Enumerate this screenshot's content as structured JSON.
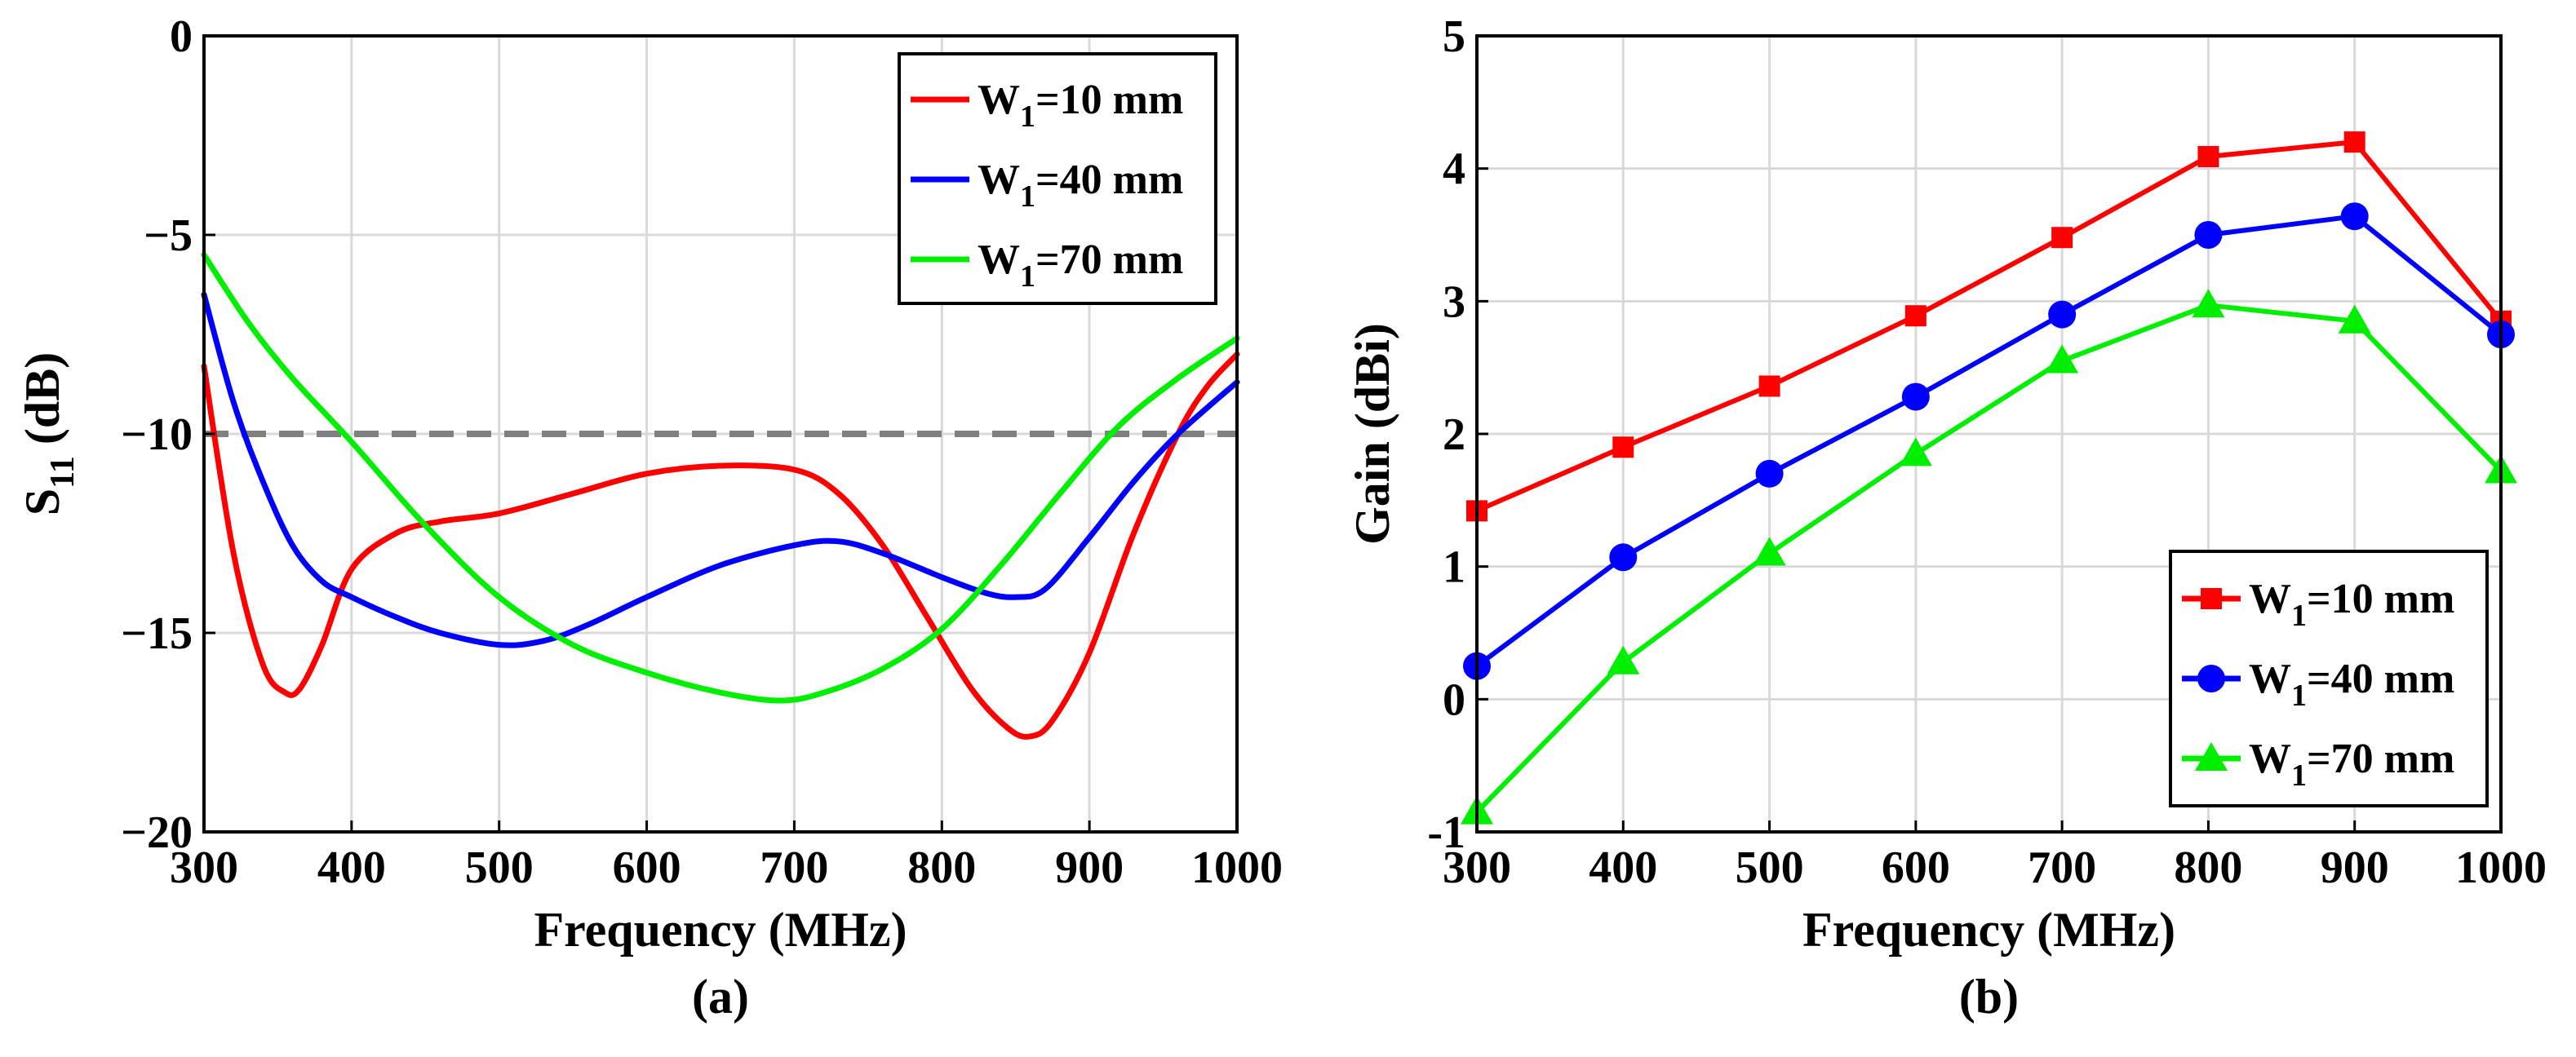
{
  "chart_data": [
    {
      "type": "line",
      "panel_label": "(a)",
      "xlabel": "Frequency (MHz)",
      "ylabel": "S",
      "ylabel_sub": "11",
      "ylabel_unit": "(dB)",
      "xlim": [
        300,
        1000
      ],
      "ylim": [
        -20,
        0
      ],
      "xticks": [
        300,
        400,
        500,
        600,
        700,
        800,
        900,
        1000
      ],
      "yticks": [
        0,
        -5,
        -10,
        -15,
        -20
      ],
      "ytick_labels": [
        "0",
        "−5",
        "−10",
        "−15",
        "−20"
      ],
      "grid": true,
      "reference_line": {
        "y": -10,
        "color": "#808080",
        "style": "dashed"
      },
      "legend_position": "top-right",
      "series": [
        {
          "name": "W1=10 mm",
          "legend_main": "W",
          "legend_sub": "1",
          "legend_rest": "=10 mm",
          "color": "#ff0000",
          "x": [
            300,
            320,
            340,
            355,
            365,
            380,
            400,
            430,
            460,
            500,
            550,
            600,
            650,
            700,
            730,
            760,
            790,
            820,
            845,
            860,
            875,
            900,
            930,
            960,
            980,
            1000
          ],
          "y": [
            -8.3,
            -13.0,
            -15.8,
            -16.5,
            -16.4,
            -15.3,
            -13.4,
            -12.5,
            -12.2,
            -12.0,
            -11.5,
            -11.0,
            -10.8,
            -10.9,
            -11.5,
            -12.8,
            -14.6,
            -16.4,
            -17.4,
            -17.6,
            -17.2,
            -15.5,
            -12.5,
            -10.0,
            -8.8,
            -8.0
          ]
        },
        {
          "name": "W1=40 mm",
          "legend_main": "W",
          "legend_sub": "1",
          "legend_rest": "=40 mm",
          "color": "#0000ff",
          "x": [
            300,
            320,
            340,
            360,
            380,
            400,
            430,
            460,
            500,
            530,
            560,
            600,
            650,
            700,
            730,
            760,
            800,
            830,
            850,
            870,
            900,
            930,
            960,
            1000
          ],
          "y": [
            -6.5,
            -9.2,
            -11.2,
            -12.8,
            -13.7,
            -14.1,
            -14.6,
            -15.0,
            -15.3,
            -15.2,
            -14.8,
            -14.1,
            -13.3,
            -12.8,
            -12.7,
            -13.0,
            -13.6,
            -14.0,
            -14.1,
            -13.9,
            -12.6,
            -11.2,
            -10.0,
            -8.7
          ]
        },
        {
          "name": "W1=70 mm",
          "legend_main": "W",
          "legend_sub": "1",
          "legend_rest": "=70 mm",
          "color": "#00ee00",
          "x": [
            300,
            330,
            360,
            400,
            450,
            500,
            550,
            600,
            650,
            690,
            720,
            760,
            800,
            840,
            880,
            920,
            960,
            1000
          ],
          "y": [
            -5.5,
            -7.2,
            -8.6,
            -10.2,
            -12.3,
            -14.1,
            -15.3,
            -16.0,
            -16.5,
            -16.7,
            -16.5,
            -15.9,
            -14.9,
            -13.3,
            -11.5,
            -9.8,
            -8.6,
            -7.6
          ]
        }
      ]
    },
    {
      "type": "line",
      "panel_label": "(b)",
      "xlabel": "Frequency (MHz)",
      "ylabel": "Gain (dBi)",
      "xlim": [
        300,
        1000
      ],
      "ylim": [
        -1,
        5
      ],
      "xticks": [
        300,
        400,
        500,
        600,
        700,
        800,
        900,
        1000
      ],
      "yticks": [
        5,
        4,
        3,
        2,
        1,
        0,
        -1
      ],
      "ytick_labels": [
        "5",
        "4",
        "3",
        "2",
        "1",
        "0",
        "-1"
      ],
      "grid": true,
      "legend_position": "bottom-right",
      "categories": [
        300,
        400,
        500,
        600,
        700,
        800,
        900,
        1000
      ],
      "series": [
        {
          "name": "W1=10 mm",
          "legend_main": "W",
          "legend_sub": "1",
          "legend_rest": "=10 mm",
          "color": "#ff0000",
          "marker": "square",
          "values": [
            1.42,
            1.9,
            2.36,
            2.89,
            3.48,
            4.09,
            4.2,
            2.85
          ]
        },
        {
          "name": "W1=40 mm",
          "legend_main": "W",
          "legend_sub": "1",
          "legend_rest": "=40 mm",
          "color": "#0000ff",
          "marker": "circle",
          "values": [
            0.25,
            1.07,
            1.7,
            2.28,
            2.9,
            3.5,
            3.64,
            2.75
          ]
        },
        {
          "name": "W1=70 mm",
          "legend_main": "W",
          "legend_sub": "1",
          "legend_rest": "=70 mm",
          "color": "#00ee00",
          "marker": "triangle",
          "values": [
            -0.85,
            0.28,
            1.1,
            1.85,
            2.55,
            2.97,
            2.85,
            1.72
          ]
        }
      ]
    }
  ]
}
